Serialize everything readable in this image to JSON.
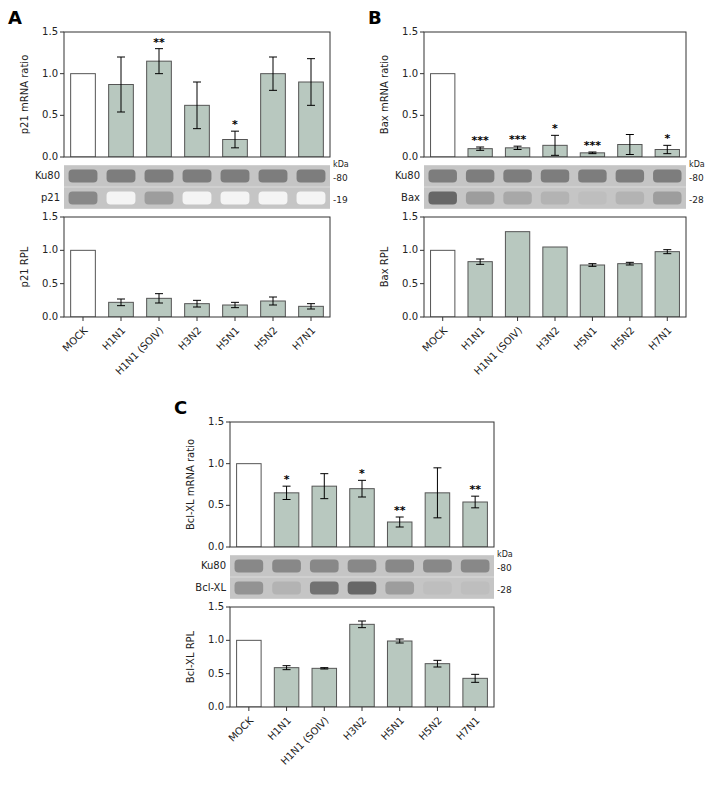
{
  "chart_data": [
    {
      "type": "bar",
      "title": "A",
      "ylabel": "p21 mRNA ratio",
      "categories": [
        "MOCK",
        "H1N1",
        "H1N1 (SOIV)",
        "H3N2",
        "H5N1",
        "H5N2",
        "H7N1"
      ],
      "values": [
        1.0,
        0.87,
        1.15,
        0.62,
        0.21,
        1.0,
        0.9
      ],
      "errors": [
        0.0,
        0.33,
        0.15,
        0.28,
        0.1,
        0.2,
        0.28
      ],
      "colors": [
        "white",
        "#b8c8bf",
        "#b8c8bf",
        "#b8c8bf",
        "#b8c8bf",
        "#b8c8bf",
        "#b8c8bf"
      ],
      "annotations": [
        null,
        null,
        "**",
        null,
        "*",
        null,
        null
      ],
      "ylim": [
        0,
        1.5
      ],
      "yticks": [
        {
          "value": 0,
          "label": "0.0"
        },
        0.5,
        {
          "value": 1,
          "label": "1.0"
        },
        1.5
      ],
      "tick_labels": "y"
    },
    {
      "type": "blot",
      "row_labels": [
        "Ku80",
        "p21"
      ],
      "row_sizes": [
        "-80",
        "-19"
      ],
      "size_unit": "kDa",
      "cells": [
        [
          0.6,
          0.6,
          0.6,
          0.6,
          0.6,
          0.6,
          0.6
        ],
        [
          0.55,
          0.05,
          0.45,
          0.05,
          0.05,
          0.05,
          0.05
        ]
      ],
      "tick_labels": false
    },
    {
      "type": "bar",
      "ylabel": "p21 RPL",
      "categories": [
        "MOCK",
        "H1N1",
        "H1N1 (SOIV)",
        "H3N2",
        "H5N1",
        "H5N2",
        "H7N1"
      ],
      "values": [
        1.0,
        0.22,
        0.28,
        0.2,
        0.18,
        0.24,
        0.16
      ],
      "errors": [
        0.0,
        0.05,
        0.07,
        0.05,
        0.04,
        0.06,
        0.04
      ],
      "colors": [
        "white",
        "#b8c8bf",
        "#b8c8bf",
        "#b8c8bf",
        "#b8c8bf",
        "#b8c8bf",
        "#b8c8bf"
      ],
      "ylim": [
        0,
        1.5
      ],
      "yticks": [
        {
          "value": 0,
          "label": "0.0"
        },
        0.5,
        {
          "value": 1,
          "label": "1.0"
        },
        1.5
      ]
    },
    {
      "type": "bar",
      "title": "B",
      "ylabel": "Bax mRNA ratio",
      "categories": [
        "MOCK",
        "H1N1",
        "H1N1 (SOIV)",
        "H3N2",
        "H5N1",
        "H5N2",
        "H7N1"
      ],
      "values": [
        1.0,
        0.1,
        0.11,
        0.14,
        0.05,
        0.15,
        0.09
      ],
      "errors": [
        0.0,
        0.02,
        0.02,
        0.12,
        0.01,
        0.12,
        0.05
      ],
      "colors": [
        "white",
        "#b8c8bf",
        "#b8c8bf",
        "#b8c8bf",
        "#b8c8bf",
        "#b8c8bf",
        "#b8c8bf"
      ],
      "annotations": [
        null,
        "***",
        "***",
        "*",
        "***",
        null,
        "*"
      ],
      "ylim": [
        0,
        1.5
      ],
      "yticks": [
        {
          "value": 0,
          "label": "0.0"
        },
        0.5,
        {
          "value": 1,
          "label": "1.0"
        },
        1.5
      ],
      "tick_labels": "y"
    },
    {
      "type": "blot",
      "row_labels": [
        "Ku80",
        "Bax"
      ],
      "row_sizes": [
        "-80",
        "-28"
      ],
      "size_unit": "kDa",
      "cells": [
        [
          0.6,
          0.6,
          0.6,
          0.6,
          0.6,
          0.6,
          0.6
        ],
        [
          0.7,
          0.45,
          0.4,
          0.35,
          0.3,
          0.35,
          0.45
        ]
      ],
      "tick_labels": false
    },
    {
      "type": "bar",
      "ylabel": "Bax RPL",
      "categories": [
        "MOCK",
        "H1N1",
        "H1N1 (SOIV)",
        "H3N2",
        "H5N1",
        "H5N2",
        "H7N1"
      ],
      "values": [
        1.0,
        0.83,
        1.28,
        1.05,
        0.78,
        0.8,
        0.98
      ],
      "errors": [
        0.0,
        0.04,
        0.0,
        0.0,
        0.02,
        0.02,
        0.03
      ],
      "colors": [
        "white",
        "#b8c8bf",
        "#b8c8bf",
        "#b8c8bf",
        "#b8c8bf",
        "#b8c8bf",
        "#b8c8bf"
      ],
      "ylim": [
        0,
        1.5
      ],
      "yticks": [
        {
          "value": 0,
          "label": "0.0"
        },
        0.5,
        {
          "value": 1,
          "label": "1.0"
        },
        1.5
      ]
    },
    {
      "type": "bar",
      "title": "C",
      "ylabel": "Bcl-XL mRNA ratio",
      "categories": [
        "MOCK",
        "H1N1",
        "H1N1 (SOIV)",
        "H3N2",
        "H5N1",
        "H5N2",
        "H7N1"
      ],
      "values": [
        1.0,
        0.65,
        0.73,
        0.7,
        0.3,
        0.65,
        0.54
      ],
      "errors": [
        0.0,
        0.08,
        0.15,
        0.1,
        0.06,
        0.3,
        0.07
      ],
      "colors": [
        "white",
        "#b8c8bf",
        "#b8c8bf",
        "#b8c8bf",
        "#b8c8bf",
        "#b8c8bf",
        "#b8c8bf"
      ],
      "annotations": [
        null,
        "*",
        null,
        "*",
        "**",
        null,
        "**"
      ],
      "ylim": [
        0,
        1.5
      ],
      "yticks": [
        {
          "value": 0,
          "label": "0.0"
        },
        0.5,
        {
          "value": 1,
          "label": "1.0"
        },
        1.5
      ],
      "tick_labels": "y"
    },
    {
      "type": "blot",
      "row_labels": [
        "Ku80",
        "Bcl-XL"
      ],
      "row_sizes": [
        "-80",
        "-28"
      ],
      "size_unit": "kDa",
      "cells": [
        [
          0.55,
          0.55,
          0.55,
          0.55,
          0.55,
          0.55,
          0.55
        ],
        [
          0.5,
          0.35,
          0.65,
          0.7,
          0.45,
          0.3,
          0.3
        ]
      ],
      "tick_labels": false
    },
    {
      "type": "bar",
      "ylabel": "Bcl-XL RPL",
      "categories": [
        "MOCK",
        "H1N1",
        "H1N1 (SOIV)",
        "H3N2",
        "H5N1",
        "H5N2",
        "H7N1"
      ],
      "values": [
        1.0,
        0.59,
        0.58,
        1.24,
        0.99,
        0.65,
        0.43
      ],
      "errors": [
        0.0,
        0.03,
        0.01,
        0.05,
        0.03,
        0.05,
        0.06
      ],
      "colors": [
        "white",
        "#b8c8bf",
        "#b8c8bf",
        "#b8c8bf",
        "#b8c8bf",
        "#b8c8bf",
        "#b8c8bf"
      ],
      "ylim": [
        0,
        1.5
      ],
      "yticks": [
        {
          "value": 0,
          "label": "0.0"
        },
        0.5,
        {
          "value": 1,
          "label": "1.0"
        },
        1.5
      ]
    }
  ]
}
